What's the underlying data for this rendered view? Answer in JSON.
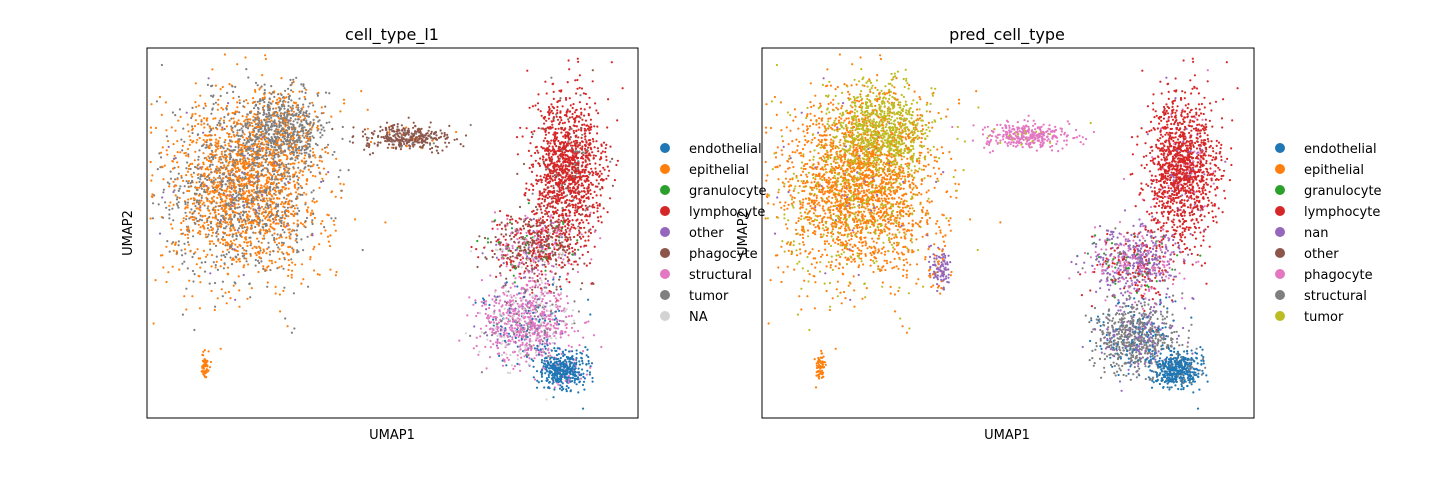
{
  "chart_data": [
    {
      "type": "scatter",
      "title": "cell_type_l1",
      "xlabel": "UMAP1",
      "ylabel": "UMAP2",
      "grid": false,
      "ticks": "none",
      "legend_placement": "right",
      "legend": [
        {
          "name": "endothelial",
          "color": "#1f77b4"
        },
        {
          "name": "epithelial",
          "color": "#ff7f0e"
        },
        {
          "name": "granulocyte",
          "color": "#2ca02c"
        },
        {
          "name": "lymphocyte",
          "color": "#d62728"
        },
        {
          "name": "other",
          "color": "#9467bd"
        },
        {
          "name": "phagocyte",
          "color": "#8c564b"
        },
        {
          "name": "structural",
          "color": "#e377c2"
        },
        {
          "name": "tumor",
          "color": "#7f7f7f"
        },
        {
          "name": "NA",
          "color": "#d3d3d3"
        }
      ]
    },
    {
      "type": "scatter",
      "title": "pred_cell_type",
      "xlabel": "UMAP1",
      "ylabel": "UMAP2",
      "grid": false,
      "ticks": "none",
      "legend_placement": "right",
      "legend": [
        {
          "name": "endothelial",
          "color": "#1f77b4"
        },
        {
          "name": "epithelial",
          "color": "#ff7f0e"
        },
        {
          "name": "granulocyte",
          "color": "#2ca02c"
        },
        {
          "name": "lymphocyte",
          "color": "#d62728"
        },
        {
          "name": "nan",
          "color": "#9467bd"
        },
        {
          "name": "other",
          "color": "#8c564b"
        },
        {
          "name": "phagocyte",
          "color": "#e377c2"
        },
        {
          "name": "structural",
          "color": "#7f7f7f"
        },
        {
          "name": "tumor",
          "color": "#bcbd22"
        }
      ]
    }
  ]
}
